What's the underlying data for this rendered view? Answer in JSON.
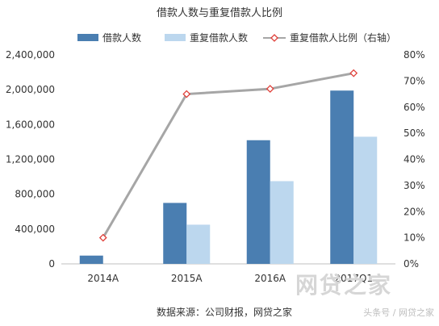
{
  "chart_data": {
    "type": "bar",
    "title": "借款人数与重复借款人比例",
    "categories": [
      "2014A",
      "2015A",
      "2016A",
      "2017Q1"
    ],
    "series": [
      {
        "name": "借款人数",
        "kind": "bar",
        "axis": "left",
        "color": "#4a7eb1",
        "values": [
          95000,
          700000,
          1420000,
          1990000
        ]
      },
      {
        "name": "重复借款人数",
        "kind": "bar",
        "axis": "left",
        "color": "#bcd7ee",
        "values": [
          0,
          450000,
          950000,
          1460000
        ]
      },
      {
        "name": "重复借款人比例（右轴）",
        "kind": "line",
        "axis": "right",
        "color": "#a6a6a6",
        "marker_color": "#e0403a",
        "values": [
          0.1,
          0.65,
          0.67,
          0.73
        ]
      }
    ],
    "y_left": {
      "min": 0,
      "max": 2400000,
      "ticks": [
        0,
        400000,
        800000,
        1200000,
        1600000,
        2000000,
        2400000
      ],
      "tick_labels": [
        "0",
        "400,000",
        "800,000",
        "1,200,000",
        "1,600,000",
        "2,000,000",
        "2,400,000"
      ]
    },
    "y_right": {
      "min": 0,
      "max": 0.8,
      "ticks": [
        0,
        0.1,
        0.2,
        0.3,
        0.4,
        0.5,
        0.6,
        0.7,
        0.8
      ],
      "tick_labels": [
        "0%",
        "10%",
        "20%",
        "30%",
        "40%",
        "50%",
        "60%",
        "70%",
        "80%"
      ]
    },
    "legend_position": "top",
    "grid": false
  },
  "source": "数据来源：公司财报，网贷之家",
  "watermark": {
    "logo": "网贷之家",
    "caption": "头条号 / 网贷之家"
  }
}
